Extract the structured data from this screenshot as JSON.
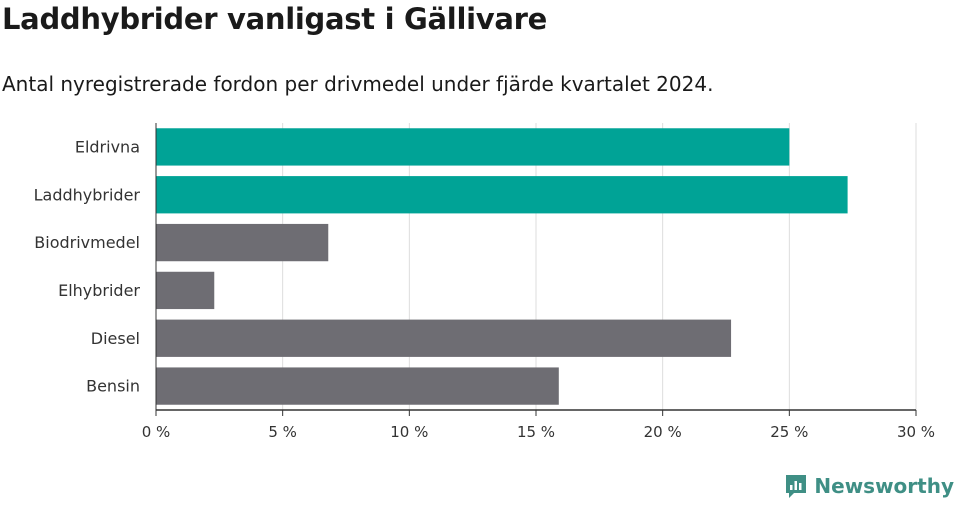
{
  "title": "Laddhybrider vanligast i Gällivare",
  "subtitle": "Antal nyregistrerade fordon per drivmedel under fjärde kvartalet 2024.",
  "brand": {
    "name": "Newsworthy",
    "icon": "newsworthy-logo-icon"
  },
  "colors": {
    "highlight": "#00a396",
    "default": "#6e6d73",
    "grid": "#dddddd",
    "axis": "#333333"
  },
  "chart_data": {
    "type": "bar",
    "orientation": "horizontal",
    "title": "Laddhybrider vanligast i Gällivare",
    "subtitle": "Antal nyregistrerade fordon per drivmedel under fjärde kvartalet 2024.",
    "categories": [
      "Eldrivna",
      "Laddhybrider",
      "Biodrivmedel",
      "Elhybrider",
      "Diesel",
      "Bensin"
    ],
    "values": [
      25.0,
      27.3,
      6.8,
      2.3,
      22.7,
      15.9
    ],
    "highlighted": [
      "Eldrivna",
      "Laddhybrider"
    ],
    "xlim": [
      0,
      30
    ],
    "xticks": [
      0,
      5,
      10,
      15,
      20,
      25,
      30
    ],
    "xtick_labels": [
      "0 %",
      "5 %",
      "10 %",
      "15 %",
      "20 %",
      "25 %",
      "30 %"
    ],
    "grid": true,
    "legend": "none"
  }
}
